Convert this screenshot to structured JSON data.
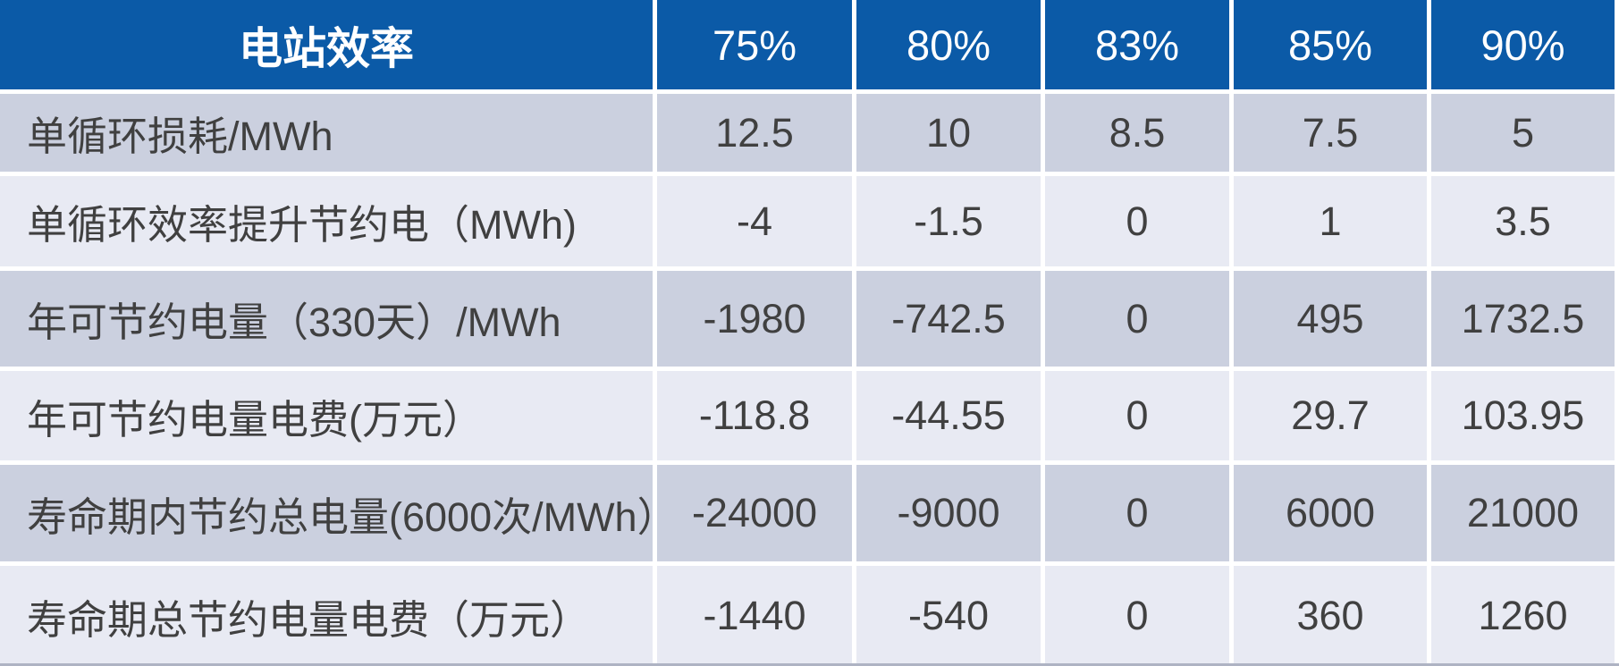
{
  "chart_data": {
    "type": "table",
    "header": {
      "title": "电站效率",
      "columns": [
        "75%",
        "80%",
        "83%",
        "85%",
        "90%"
      ]
    },
    "rows": [
      {
        "label": "单循环损耗/MWh",
        "values": [
          12.5,
          10,
          8.5,
          7.5,
          5
        ]
      },
      {
        "label": "单循环效率提升节约电（MWh)",
        "values": [
          -4,
          -1.5,
          0,
          1,
          3.5
        ]
      },
      {
        "label": "年可节约电量（330天）/MWh",
        "values": [
          -1980,
          -742.5,
          0,
          495,
          1732.5
        ]
      },
      {
        "label": "年可节约电量电费(万元）",
        "values": [
          -118.8,
          -44.55,
          0,
          29.7,
          103.95
        ]
      },
      {
        "label": "寿命期内节约总电量(6000次/MWh）",
        "values": [
          -24000,
          -9000,
          0,
          6000,
          21000
        ]
      },
      {
        "label": "寿命期总节约电量电费（万元）",
        "values": [
          -1440,
          -540,
          0,
          360,
          1260
        ]
      }
    ],
    "layout": {
      "banded_rows": true,
      "value_alignment": "center",
      "label_alignment": "left"
    },
    "colors": {
      "header_bg": "#0b5aa7",
      "header_text": "#ffffff",
      "band_dark": "#cbd0df",
      "band_light": "#e8eaf3",
      "body_text": "#404040",
      "separator": "#ffffff",
      "bottom_edge": "#aeb3c3"
    }
  }
}
